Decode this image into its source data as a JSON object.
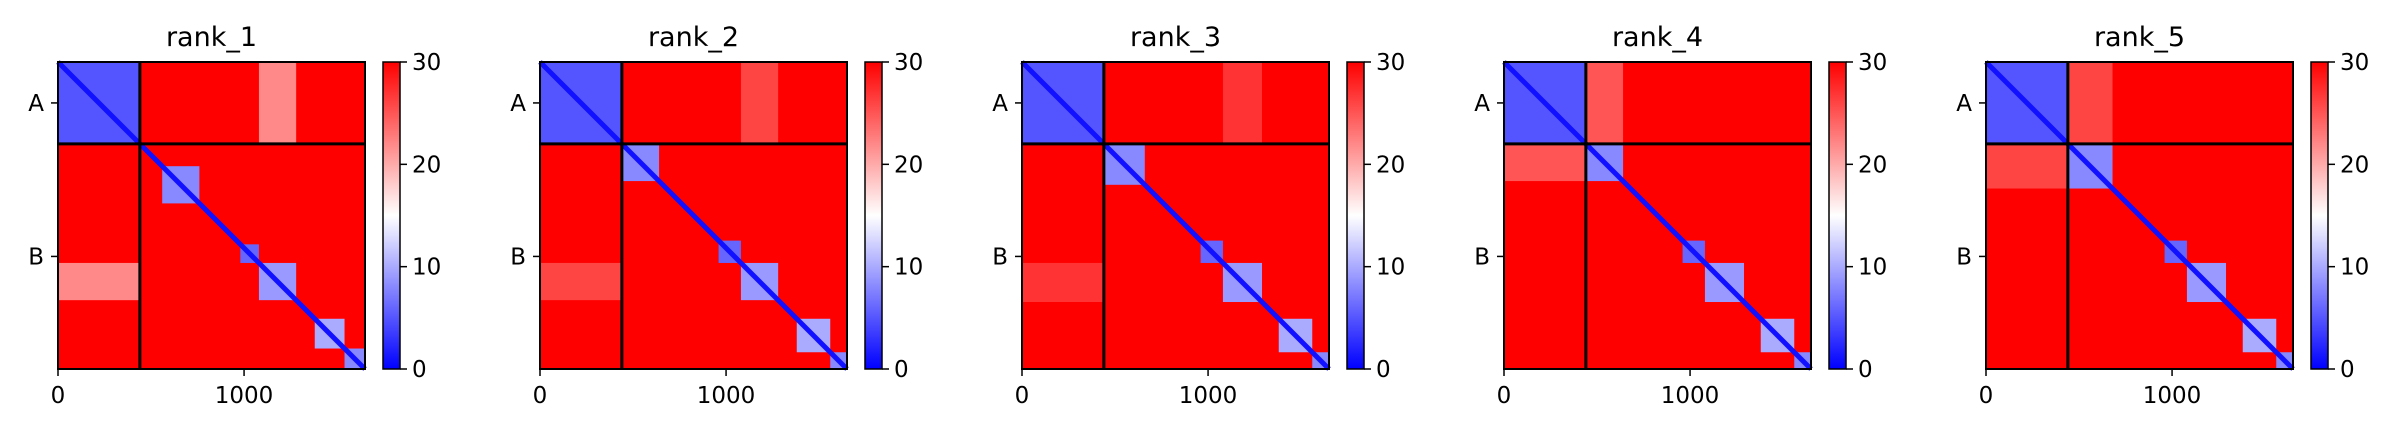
{
  "figure": {
    "panels_count": 5
  },
  "chart_data": [
    {
      "type": "heatmap",
      "title": "rank_1",
      "x_ticks": [
        0,
        1000
      ],
      "x_range": [
        0,
        1650
      ],
      "y_tick_labels": [
        "A",
        "B"
      ],
      "chain_boundary": 440,
      "colorbar": {
        "min": 0,
        "max": 30,
        "ticks": [
          0,
          10,
          20,
          30
        ],
        "colors": [
          "#0000ff",
          "#ffffff",
          "#ff0000"
        ]
      },
      "blocks": [
        [
          0,
          440,
          5
        ],
        [
          560,
          760,
          8
        ],
        [
          980,
          1080,
          6
        ],
        [
          1080,
          1280,
          9
        ],
        [
          1380,
          1540,
          10
        ],
        [
          1540,
          1650,
          8
        ]
      ],
      "off_diagonal_low": [
        [
          0,
          440,
          1080,
          1280,
          22
        ]
      ]
    },
    {
      "type": "heatmap",
      "title": "rank_2",
      "x_ticks": [
        0,
        1000
      ],
      "x_range": [
        0,
        1650
      ],
      "y_tick_labels": [
        "A",
        "B"
      ],
      "chain_boundary": 440,
      "colorbar": {
        "min": 0,
        "max": 30,
        "ticks": [
          0,
          10,
          20,
          30
        ],
        "colors": [
          "#0000ff",
          "#ffffff",
          "#ff0000"
        ]
      },
      "blocks": [
        [
          0,
          440,
          5
        ],
        [
          440,
          640,
          8
        ],
        [
          960,
          1080,
          6
        ],
        [
          1080,
          1280,
          9
        ],
        [
          1380,
          1560,
          10
        ],
        [
          1560,
          1650,
          8
        ]
      ],
      "off_diagonal_low": [
        [
          0,
          440,
          1080,
          1280,
          26
        ]
      ]
    },
    {
      "type": "heatmap",
      "title": "rank_3",
      "x_ticks": [
        0,
        1000
      ],
      "x_range": [
        0,
        1650
      ],
      "y_tick_labels": [
        "A",
        "B"
      ],
      "chain_boundary": 440,
      "colorbar": {
        "min": 0,
        "max": 30,
        "ticks": [
          0,
          10,
          20,
          30
        ],
        "colors": [
          "#0000ff",
          "#ffffff",
          "#ff0000"
        ]
      },
      "blocks": [
        [
          0,
          440,
          5
        ],
        [
          440,
          660,
          8
        ],
        [
          960,
          1080,
          6
        ],
        [
          1080,
          1290,
          9
        ],
        [
          1380,
          1560,
          10
        ],
        [
          1560,
          1650,
          8
        ]
      ],
      "off_diagonal_low": [
        [
          0,
          440,
          1080,
          1290,
          27
        ]
      ]
    },
    {
      "type": "heatmap",
      "title": "rank_4",
      "x_ticks": [
        0,
        1000
      ],
      "x_range": [
        0,
        1650
      ],
      "y_tick_labels": [
        "A",
        "B"
      ],
      "chain_boundary": 440,
      "colorbar": {
        "min": 0,
        "max": 30,
        "ticks": [
          0,
          10,
          20,
          30
        ],
        "colors": [
          "#0000ff",
          "#ffffff",
          "#ff0000"
        ]
      },
      "blocks": [
        [
          0,
          440,
          5
        ],
        [
          440,
          640,
          8
        ],
        [
          960,
          1080,
          6
        ],
        [
          1080,
          1290,
          9
        ],
        [
          1380,
          1560,
          10
        ],
        [
          1560,
          1650,
          8
        ]
      ],
      "off_diagonal_low": [
        [
          0,
          440,
          440,
          640,
          25
        ]
      ]
    },
    {
      "type": "heatmap",
      "title": "rank_5",
      "x_ticks": [
        0,
        1000
      ],
      "x_range": [
        0,
        1650
      ],
      "y_tick_labels": [
        "A",
        "B"
      ],
      "chain_boundary": 440,
      "colorbar": {
        "min": 0,
        "max": 30,
        "ticks": [
          0,
          10,
          20,
          30
        ],
        "colors": [
          "#0000ff",
          "#ffffff",
          "#ff0000"
        ]
      },
      "blocks": [
        [
          0,
          440,
          5
        ],
        [
          440,
          680,
          8
        ],
        [
          960,
          1080,
          6
        ],
        [
          1080,
          1290,
          9
        ],
        [
          1380,
          1560,
          10
        ],
        [
          1560,
          1650,
          8
        ]
      ],
      "off_diagonal_low": [
        [
          0,
          440,
          440,
          680,
          26
        ]
      ]
    }
  ]
}
